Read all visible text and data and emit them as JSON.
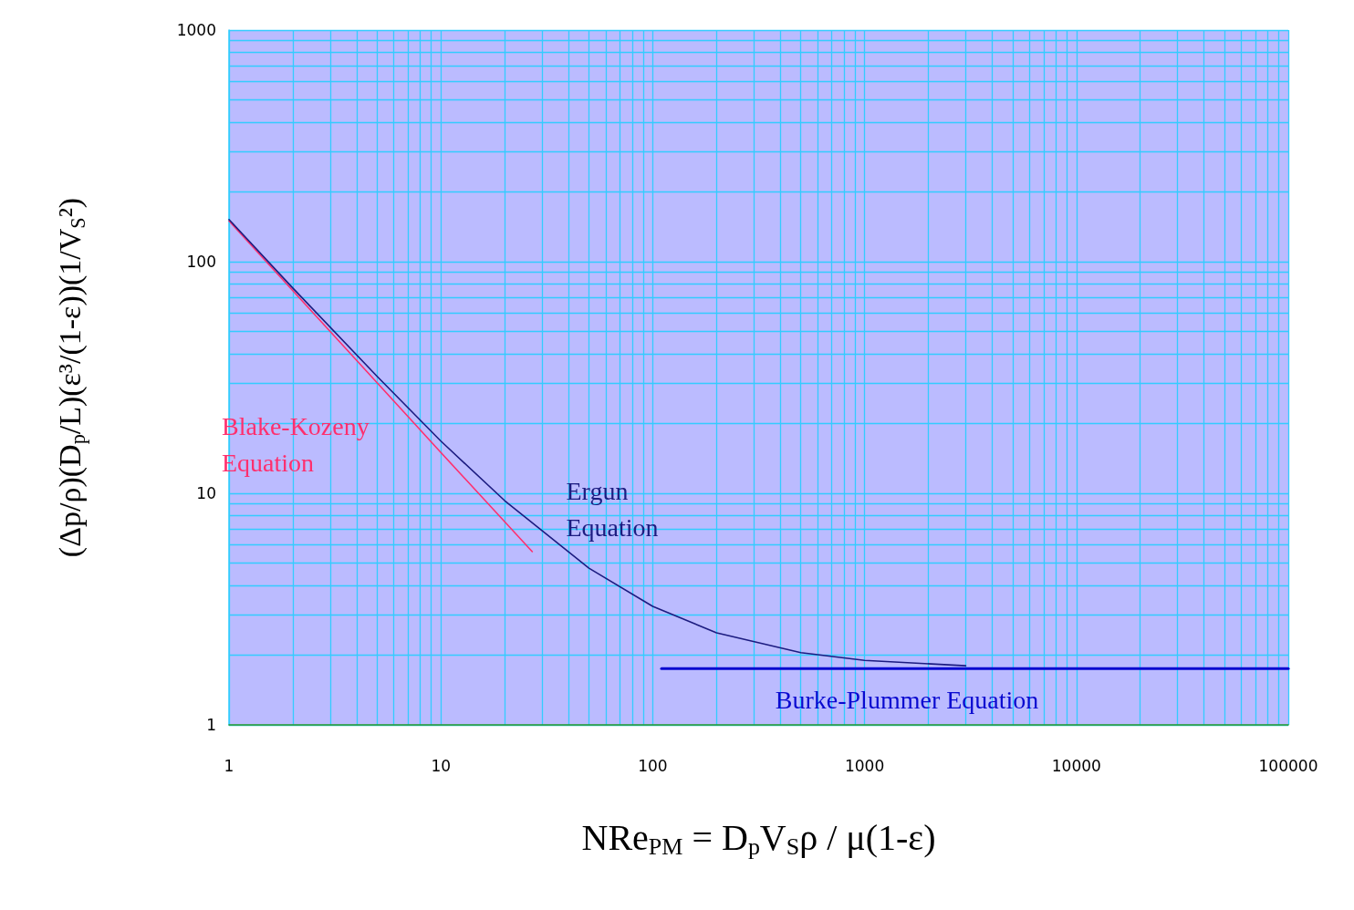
{
  "chart_data": {
    "type": "line",
    "xlabel": "NRe$_{PM}$ = D$_{p}$V$_{S}$ρ / μ(1-ε)",
    "ylabel": "(Δp/ρ)(D$_{p}$/L)(ε³/(1-ε))(1/V$_{S}$²)",
    "log": "xy",
    "xlim": [
      1,
      100000
    ],
    "ylim": [
      1,
      1000
    ],
    "xticks": [
      1,
      10,
      100,
      1000,
      10000,
      100000
    ],
    "yticks": [
      1,
      10,
      100,
      1000
    ],
    "grid": true,
    "legend": false,
    "line_style": "solid",
    "series": [
      {
        "name": "Blake-Kozeny Equation",
        "color": "#ff2f6e",
        "x": [
          1,
          2,
          5,
          10,
          27
        ],
        "values": [
          150,
          75,
          30,
          15,
          5.6
        ]
      },
      {
        "name": "Ergun Equation",
        "color": "#1c1c80",
        "x": [
          1,
          2,
          5,
          10,
          20,
          50,
          100,
          200,
          500,
          1000,
          3000
        ],
        "values": [
          152,
          77,
          32,
          16.8,
          9.3,
          4.75,
          3.25,
          2.5,
          2.05,
          1.9,
          1.8
        ]
      },
      {
        "name": "Burke-Plummer Equation",
        "color": "#0a0ad0",
        "x": [
          110,
          10000,
          100000
        ],
        "values": [
          1.75,
          1.75,
          1.75
        ]
      }
    ]
  }
}
